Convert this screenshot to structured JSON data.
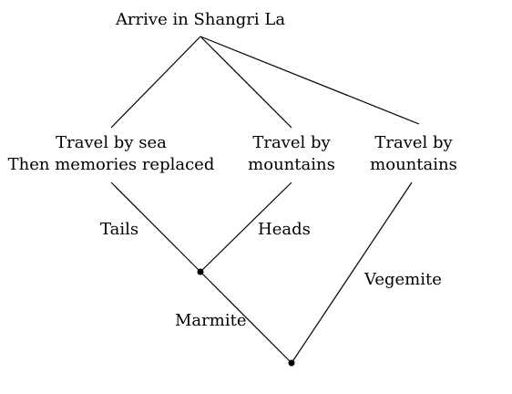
{
  "nodes": {
    "root": "Arrive in Shangri La",
    "sea_line1": "Travel by sea",
    "sea_line2": "Then memories replaced",
    "mountains_a_line1": "Travel by",
    "mountains_a_line2": "mountains",
    "mountains_b_line1": "Travel by",
    "mountains_b_line2": "mountains"
  },
  "edge_labels": {
    "tails": "Tails",
    "heads": "Heads",
    "marmite": "Marmite",
    "vegemite": "Vegemite"
  },
  "colors": {
    "line": "#000000",
    "background": "#ffffff"
  }
}
